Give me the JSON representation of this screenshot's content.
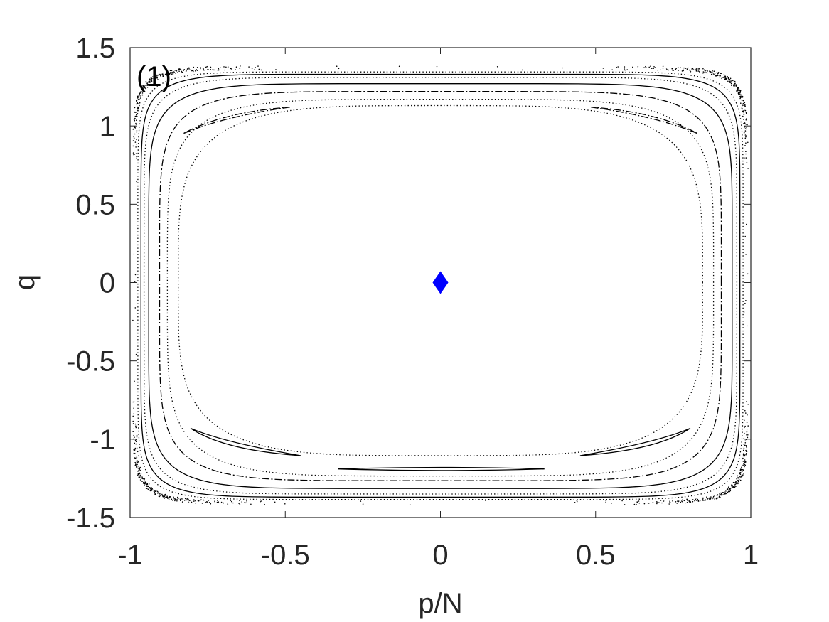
{
  "chart_data": {
    "type": "scatter",
    "title": "",
    "panel_label": "(1)",
    "xlabel": "p/N",
    "ylabel": "q",
    "xlim": [
      -1,
      1
    ],
    "ylim": [
      -1.5,
      1.5
    ],
    "xticks": [
      -1,
      -0.5,
      0,
      0.5,
      1
    ],
    "xtick_labels": [
      "-1",
      "-0.5",
      "0",
      "0.5",
      "1"
    ],
    "yticks": [
      -1.5,
      -1,
      -0.5,
      0,
      0.5,
      1,
      1.5
    ],
    "ytick_labels": [
      "-1.5",
      "-1",
      "-0.5",
      "0",
      "0.5",
      "1",
      "1.5"
    ],
    "grid": false,
    "legend": "none",
    "colors": {
      "orbits": "#000000",
      "fixed_point": "#0000ff"
    },
    "orbits": [
      {
        "style": "scatter",
        "ring": {
          "pmax": 0.985,
          "qtop": 1.37,
          "qbot": -1.405,
          "shape": 12
        }
      },
      {
        "style": "dotted",
        "ring": {
          "pmax": 0.975,
          "qtop": 1.345,
          "qbot": -1.385,
          "shape": 10
        }
      },
      {
        "style": "solid",
        "ring": {
          "pmax": 0.965,
          "qtop": 1.33,
          "qbot": -1.37,
          "shape": 9
        }
      },
      {
        "style": "dotted",
        "ring": {
          "pmax": 0.955,
          "qtop": 1.31,
          "qbot": -1.35,
          "shape": 8
        }
      },
      {
        "style": "solid",
        "ring": {
          "pmax": 0.94,
          "qtop": 1.27,
          "qbot": -1.315,
          "shape": 7
        }
      },
      {
        "style": "dashed",
        "ring": {
          "pmax": 0.905,
          "qtop": 1.22,
          "qbot": -1.265,
          "shape": 6
        }
      },
      {
        "style": "dotted",
        "ring": {
          "pmax": 0.88,
          "qtop": 1.17,
          "qbot": -1.235,
          "shape": 5
        }
      },
      {
        "style": "dotted",
        "ring": {
          "pmax": 0.845,
          "qtop": 1.13,
          "qbot": -1.105,
          "shape": 4
        }
      },
      {
        "style": "dashed",
        "island": {
          "outer": [
            [
              -0.485,
              1.12
            ],
            [
              -0.7,
              1.06
            ],
            [
              -0.83,
              0.95
            ]
          ],
          "inner": [
            [
              -0.83,
              0.95
            ],
            [
              -0.7,
              1.09
            ],
            [
              -0.485,
              1.12
            ]
          ]
        }
      },
      {
        "style": "dashed",
        "island": {
          "outer": [
            [
              0.485,
              1.12
            ],
            [
              0.7,
              1.06
            ],
            [
              0.83,
              0.95
            ]
          ],
          "inner": [
            [
              0.83,
              0.95
            ],
            [
              0.7,
              1.09
            ],
            [
              0.485,
              1.12
            ]
          ]
        }
      },
      {
        "style": "solid",
        "island": {
          "outer": [
            [
              -0.805,
              -0.93
            ],
            [
              -0.7,
              -1.02
            ],
            [
              -0.45,
              -1.105
            ]
          ],
          "inner": [
            [
              -0.45,
              -1.105
            ],
            [
              -0.7,
              -1.07
            ],
            [
              -0.805,
              -0.93
            ]
          ]
        }
      },
      {
        "style": "solid",
        "island": {
          "outer": [
            [
              0.805,
              -0.93
            ],
            [
              0.7,
              -1.02
            ],
            [
              0.45,
              -1.105
            ]
          ],
          "inner": [
            [
              0.45,
              -1.105
            ],
            [
              0.7,
              -1.07
            ],
            [
              0.805,
              -0.93
            ]
          ]
        }
      },
      {
        "style": "solid",
        "island": {
          "outer": [
            [
              -0.33,
              -1.19
            ],
            [
              0,
              -1.17
            ],
            [
              0.335,
              -1.19
            ]
          ],
          "inner": [
            [
              0.335,
              -1.19
            ],
            [
              0,
              -1.21
            ],
            [
              -0.33,
              -1.19
            ]
          ]
        }
      }
    ],
    "fixed_points": [
      {
        "x": 0,
        "y": 0,
        "marker": "diamond",
        "color": "#0000ff"
      }
    ]
  }
}
